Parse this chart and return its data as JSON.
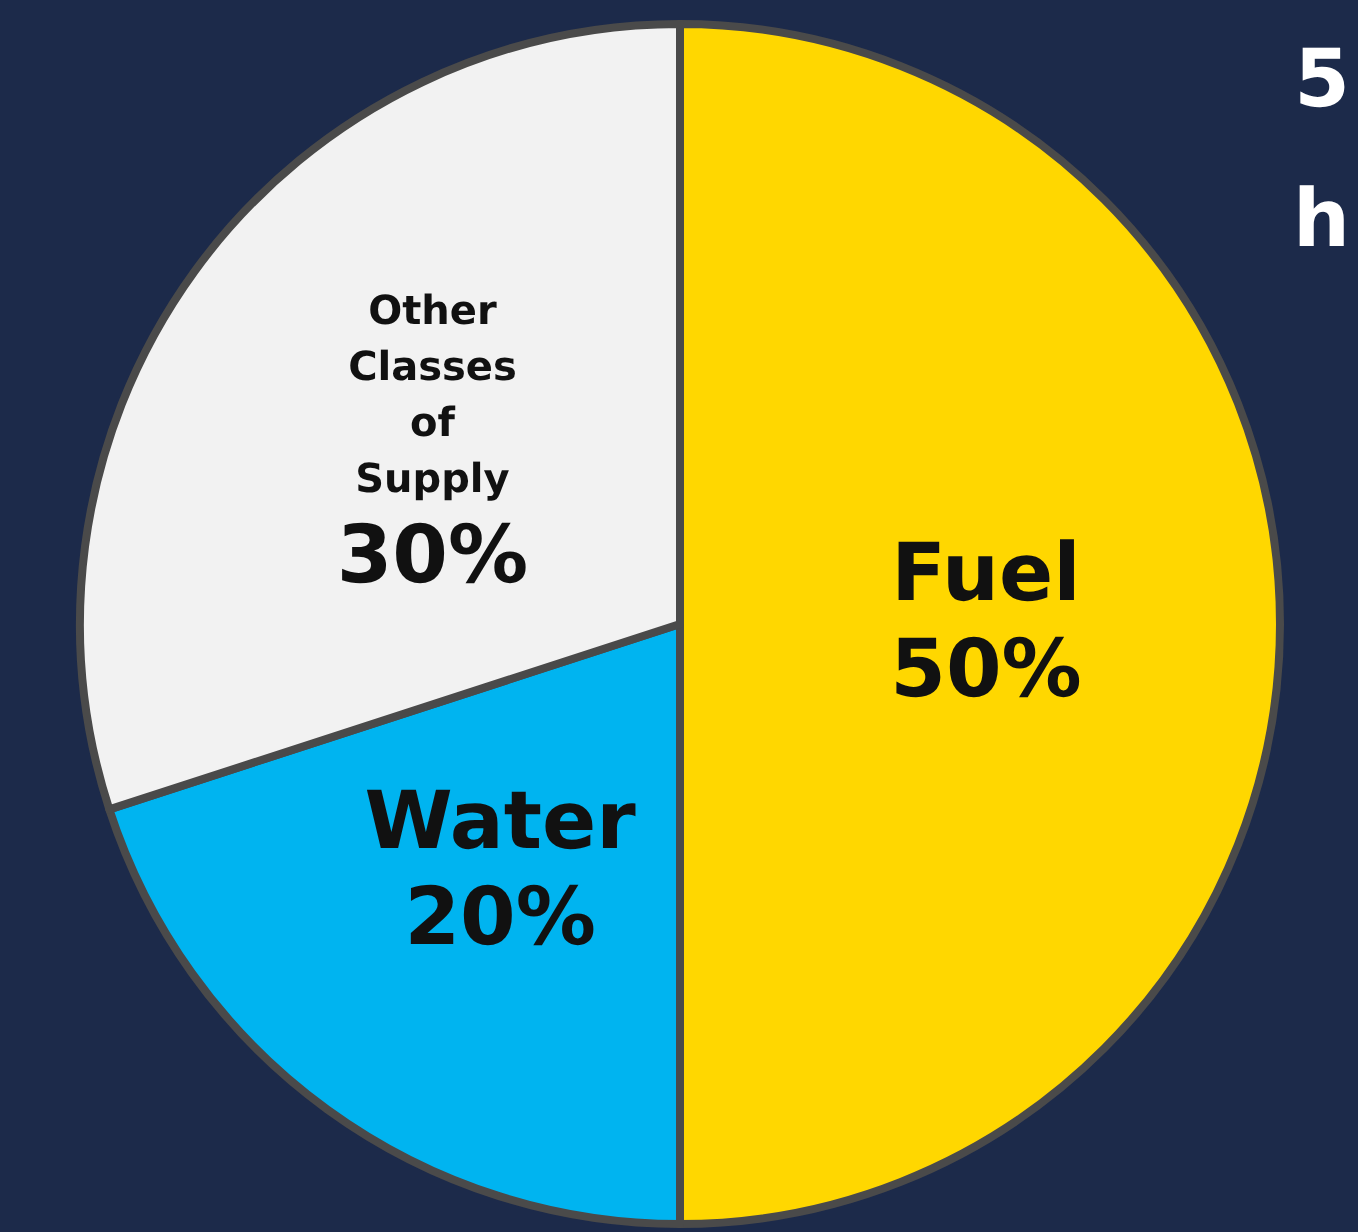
{
  "chart_data": {
    "type": "pie",
    "categories": [
      "Fuel",
      "Water",
      "Other Classes of Supply"
    ],
    "values": [
      50,
      20,
      30
    ],
    "value_labels": [
      "50%",
      "20%",
      "30%"
    ],
    "colors": [
      "#ffd700",
      "#00b4f0",
      "#f2f2f2"
    ],
    "annotations": [
      "5",
      "h"
    ]
  }
}
